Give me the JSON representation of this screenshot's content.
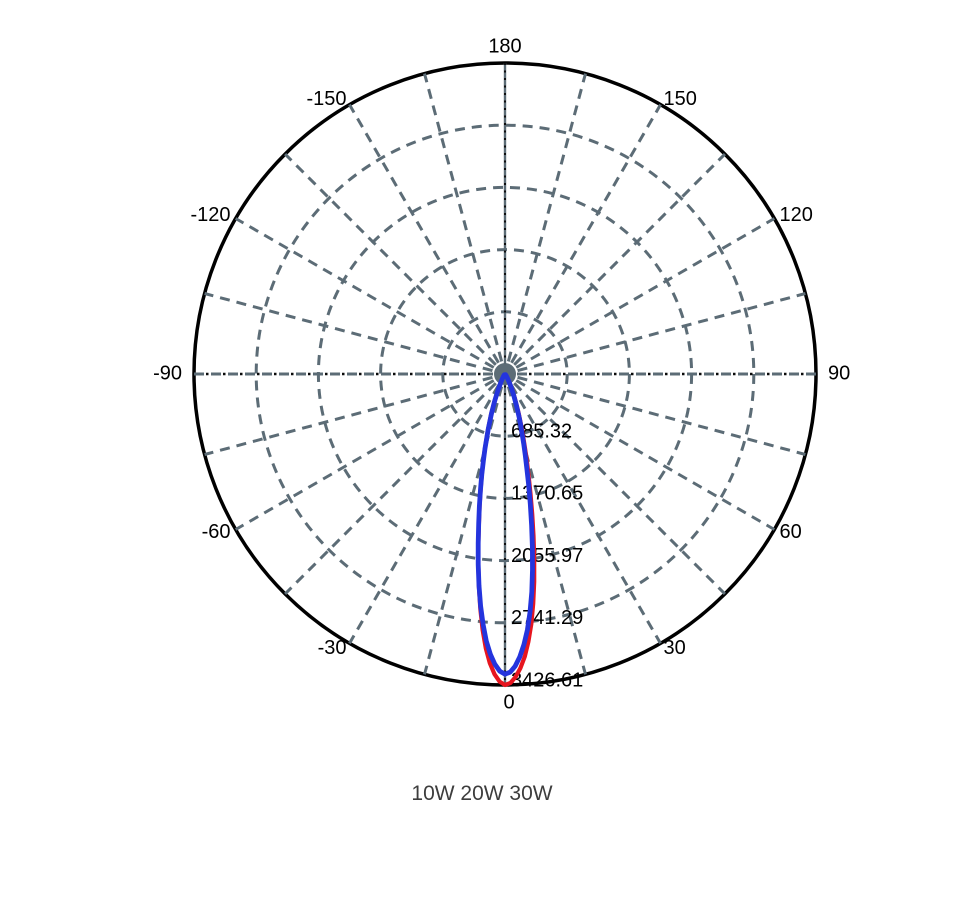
{
  "chart_data": {
    "type": "line",
    "subtype": "polar-photometric",
    "caption": "10W 20W 30W",
    "angle_axis": {
      "unit": "deg",
      "zero_at": "bottom",
      "grid_step_deg": 15,
      "label_step_deg": 30,
      "tick_labels": [
        {
          "angle": 180,
          "label": "180"
        },
        {
          "angle": -150,
          "label": "-150"
        },
        {
          "angle": 150,
          "label": "150"
        },
        {
          "angle": -120,
          "label": "-120"
        },
        {
          "angle": 120,
          "label": "120"
        },
        {
          "angle": -90,
          "label": "-90"
        },
        {
          "angle": 90,
          "label": "90"
        },
        {
          "angle": -60,
          "label": "-60"
        },
        {
          "angle": 60,
          "label": "60"
        },
        {
          "angle": -30,
          "label": "-30"
        },
        {
          "angle": 30,
          "label": "30"
        },
        {
          "angle": 0,
          "label": "0"
        }
      ]
    },
    "radial_axis": {
      "min": 0,
      "max": 3426.61,
      "rings": [
        {
          "value": 685.32,
          "label": "685.32"
        },
        {
          "value": 1370.65,
          "label": "1370.65"
        },
        {
          "value": 2055.97,
          "label": "2055.97"
        },
        {
          "value": 2741.29,
          "label": "2741.29"
        },
        {
          "value": 3426.61,
          "label": "3426.61"
        }
      ]
    },
    "series": [
      {
        "name": "curve-red",
        "color": "#e6151f",
        "stroke_width": 4.2,
        "points": [
          [
            -40,
            14
          ],
          [
            -36,
            22
          ],
          [
            -32,
            36
          ],
          [
            -29,
            62
          ],
          [
            -26,
            115
          ],
          [
            -23,
            215
          ],
          [
            -21,
            330
          ],
          [
            -19,
            470
          ],
          [
            -17,
            640
          ],
          [
            -15,
            860
          ],
          [
            -14,
            990
          ],
          [
            -13,
            1130
          ],
          [
            -12,
            1290
          ],
          [
            -11,
            1460
          ],
          [
            -10,
            1650
          ],
          [
            -9,
            1870
          ],
          [
            -8,
            2110
          ],
          [
            -7,
            2360
          ],
          [
            -6,
            2600
          ],
          [
            -5,
            2830
          ],
          [
            -4,
            3030
          ],
          [
            -3,
            3190
          ],
          [
            -2,
            3310
          ],
          [
            -1,
            3390
          ],
          [
            0,
            3426.61
          ],
          [
            1,
            3405
          ],
          [
            2,
            3340
          ],
          [
            3,
            3245
          ],
          [
            4,
            3120
          ],
          [
            5,
            2960
          ],
          [
            6,
            2770
          ],
          [
            7,
            2550
          ],
          [
            8,
            2310
          ],
          [
            9,
            2060
          ],
          [
            10,
            1810
          ],
          [
            11,
            1570
          ],
          [
            12,
            1350
          ],
          [
            13,
            1160
          ],
          [
            14,
            1000
          ],
          [
            15,
            860
          ],
          [
            16,
            740
          ],
          [
            17,
            640
          ],
          [
            18,
            550
          ],
          [
            19,
            470
          ],
          [
            20,
            400
          ],
          [
            22,
            290
          ],
          [
            24,
            205
          ],
          [
            26,
            140
          ],
          [
            28,
            92
          ],
          [
            30,
            58
          ],
          [
            33,
            32
          ],
          [
            36,
            18
          ],
          [
            40,
            10
          ]
        ]
      },
      {
        "name": "curve-blue",
        "color": "#2434dd",
        "stroke_width": 4.8,
        "points": [
          [
            -40,
            12
          ],
          [
            -36,
            20
          ],
          [
            -32,
            33
          ],
          [
            -29,
            58
          ],
          [
            -26,
            108
          ],
          [
            -23,
            205
          ],
          [
            -21,
            318
          ],
          [
            -19,
            455
          ],
          [
            -17,
            625
          ],
          [
            -15,
            850
          ],
          [
            -14,
            985
          ],
          [
            -13,
            1135
          ],
          [
            -12,
            1300
          ],
          [
            -11,
            1480
          ],
          [
            -10,
            1670
          ],
          [
            -9,
            1890
          ],
          [
            -8,
            2120
          ],
          [
            -7,
            2350
          ],
          [
            -6,
            2570
          ],
          [
            -5,
            2770
          ],
          [
            -4,
            2950
          ],
          [
            -3,
            3090
          ],
          [
            -2,
            3200
          ],
          [
            -1,
            3275
          ],
          [
            0,
            3308
          ],
          [
            1,
            3285
          ],
          [
            2,
            3220
          ],
          [
            3,
            3120
          ],
          [
            4,
            2990
          ],
          [
            5,
            2830
          ],
          [
            6,
            2640
          ],
          [
            7,
            2420
          ],
          [
            8,
            2180
          ],
          [
            9,
            1930
          ],
          [
            10,
            1690
          ],
          [
            11,
            1460
          ],
          [
            12,
            1255
          ],
          [
            13,
            1075
          ],
          [
            14,
            925
          ],
          [
            15,
            795
          ],
          [
            16,
            685
          ],
          [
            17,
            590
          ],
          [
            18,
            505
          ],
          [
            19,
            430
          ],
          [
            20,
            365
          ],
          [
            22,
            262
          ],
          [
            24,
            185
          ],
          [
            26,
            126
          ],
          [
            28,
            82
          ],
          [
            30,
            52
          ],
          [
            33,
            28
          ],
          [
            36,
            16
          ],
          [
            40,
            9
          ]
        ]
      }
    ],
    "style": {
      "grid_color": "#5c6c76",
      "outer_ring_color": "#000000",
      "axis_dot_color": "#0a0a0a",
      "center_dot_color": "#5c6c76",
      "label_color": "#000000",
      "caption_color": "#3d3d3d",
      "background": "#ffffff"
    }
  }
}
